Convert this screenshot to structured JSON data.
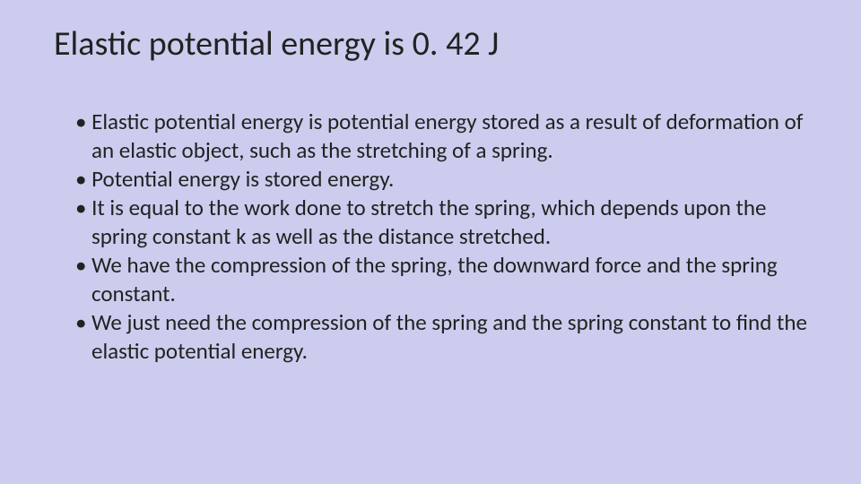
{
  "slide": {
    "background_color": "#ccccee",
    "text_color": "#222222",
    "title": "Elastic potential energy is 0. 42 J",
    "title_fontsize": 38,
    "bullet_fontsize": 25,
    "bullets": [
      "Elastic potential energy is potential energy stored as a result of deformation of an elastic object, such as the stretching of a spring.",
      "Potential energy is stored energy.",
      "It is equal to the work done to stretch the spring, which depends upon the spring constant k as well as the distance stretched.",
      "We have the compression of the spring, the downward force and the spring constant.",
      "We just need the compression of the spring and the spring constant to find the elastic potential energy."
    ]
  }
}
